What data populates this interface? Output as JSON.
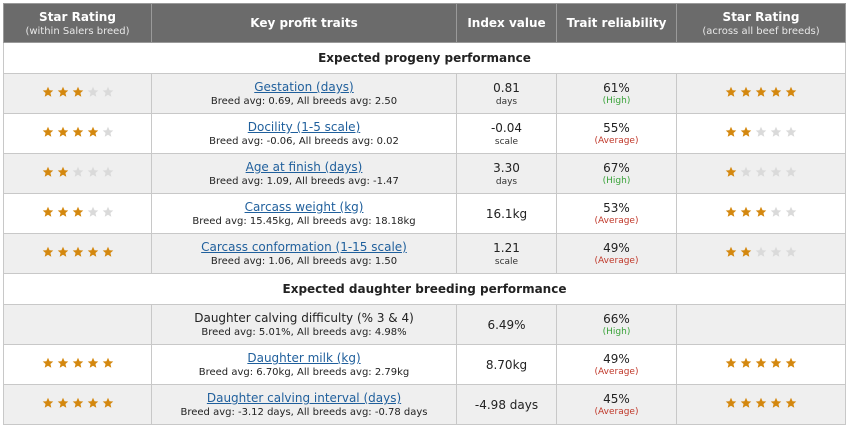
{
  "colors": {
    "filled_star": "#d4880f",
    "empty_star": "#dadada",
    "high": "#3aa33a",
    "average": "#c0392b"
  },
  "header": {
    "col1_title": "Star Rating",
    "col1_sub": "(within Salers breed)",
    "col2_title": "Key profit traits",
    "col3_title": "Index value",
    "col4_title": "Trait reliability",
    "col5_title": "Star Rating",
    "col5_sub": "(across all beef breeds)"
  },
  "sections": [
    {
      "title": "Expected progeny performance",
      "rows": [
        {
          "stars_breed": 3,
          "trait": "Gestation (days)",
          "link": true,
          "avg": "Breed avg: 0.69, All breeds avg: 2.50",
          "index": "0.81",
          "unit": "days",
          "reliability": "61%",
          "rel_label": "(High)",
          "rel_level": "high",
          "stars_all": 5
        },
        {
          "stars_breed": 4,
          "trait": "Docility (1-5 scale)",
          "link": true,
          "avg": "Breed avg: -0.06, All breeds avg: 0.02",
          "index": "-0.04",
          "unit": "scale",
          "reliability": "55%",
          "rel_label": "(Average)",
          "rel_level": "average",
          "stars_all": 2
        },
        {
          "stars_breed": 2,
          "trait": "Age at finish (days)",
          "link": true,
          "avg": "Breed avg: 1.09, All breeds avg: -1.47",
          "index": "3.30",
          "unit": "days",
          "reliability": "67%",
          "rel_label": "(High)",
          "rel_level": "high",
          "stars_all": 1
        },
        {
          "stars_breed": 3,
          "trait": "Carcass weight (kg)",
          "link": true,
          "avg": "Breed avg: 15.45kg, All breeds avg: 18.18kg",
          "index": "16.1kg",
          "unit": "",
          "reliability": "53%",
          "rel_label": "(Average)",
          "rel_level": "average",
          "stars_all": 3
        },
        {
          "stars_breed": 5,
          "trait": "Carcass conformation (1-15 scale)",
          "link": true,
          "avg": "Breed avg: 1.06, All breeds avg: 1.50",
          "index": "1.21",
          "unit": "scale",
          "reliability": "49%",
          "rel_label": "(Average)",
          "rel_level": "average",
          "stars_all": 2
        }
      ]
    },
    {
      "title": "Expected daughter breeding performance",
      "rows": [
        {
          "stars_breed": 0,
          "trait": "Daughter calving difficulty (% 3 & 4)",
          "link": false,
          "avg": "Breed avg: 5.01%, All breeds avg: 4.98%",
          "index": "6.49%",
          "unit": "",
          "reliability": "66%",
          "rel_label": "(High)",
          "rel_level": "high",
          "stars_all": 0
        },
        {
          "stars_breed": 5,
          "trait": "Daughter milk (kg)",
          "link": true,
          "avg": "Breed avg: 6.70kg, All breeds avg: 2.79kg",
          "index": "8.70kg",
          "unit": "",
          "reliability": "49%",
          "rel_label": "(Average)",
          "rel_level": "average",
          "stars_all": 5
        },
        {
          "stars_breed": 5,
          "trait": "Daughter calving interval (days)",
          "link": true,
          "avg": "Breed avg: -3.12 days, All breeds avg: -0.78 days",
          "index": "-4.98 days",
          "unit": "",
          "reliability": "45%",
          "rel_label": "(Average)",
          "rel_level": "average",
          "stars_all": 5
        }
      ]
    }
  ]
}
